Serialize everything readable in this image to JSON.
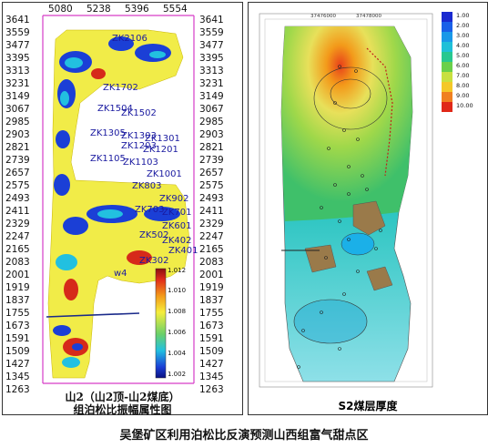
{
  "left": {
    "x_ticks": [
      "5080",
      "5238",
      "5396",
      "5554"
    ],
    "y_ticks": [
      "3641",
      "3559",
      "3477",
      "3395",
      "3313",
      "3231",
      "3149",
      "3067",
      "2985",
      "2903",
      "2821",
      "2739",
      "2657",
      "2575",
      "2493",
      "2411",
      "2329",
      "2247",
      "2165",
      "2083",
      "2001",
      "1919",
      "1837",
      "1755",
      "1673",
      "1591",
      "1509",
      "1427",
      "1345",
      "1263"
    ],
    "wells": [
      "ZK2106",
      "ZK1702",
      "ZK1504",
      "ZK1502",
      "ZK1305",
      "ZK1303",
      "ZK1301",
      "ZK1203",
      "ZK1201",
      "ZK1105",
      "ZK1103",
      "ZK1001",
      "ZK902",
      "ZK803",
      "ZK703",
      "ZK701",
      "ZK601",
      "ZK502",
      "ZK402",
      "ZK401",
      "ZK302",
      "w4"
    ],
    "colorbar_labels": [
      "1.012",
      "1.010",
      "1.008",
      "1.006",
      "1.004",
      "1.002"
    ],
    "caption_line1": "山2（山2顶-山2煤底）",
    "caption_line2": "组泊松比振幅属性图"
  },
  "right": {
    "top_ticks": [
      "37476000",
      "37478000"
    ],
    "legend": [
      "1.00",
      "2.00",
      "3.00",
      "4.00",
      "5.00",
      "6.00",
      "7.00",
      "8.00",
      "9.00",
      "10.00"
    ],
    "caption": "S2煤层厚度"
  },
  "figure_caption": "吴堡矿区利用泊松比反演预测山西组富气甜点区"
}
